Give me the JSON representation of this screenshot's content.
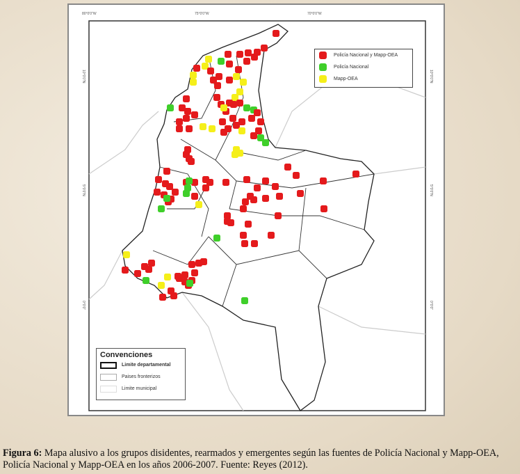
{
  "legend": {
    "items": [
      {
        "label": "Policía Nacional y Mapp-OEA",
        "color": "#e41a1c"
      },
      {
        "label": "Policía Nacional",
        "color": "#3fcf2a"
      },
      {
        "label": "Mapp-OEA",
        "color": "#f5ef1a"
      }
    ]
  },
  "conventions": {
    "title": "Convenciones",
    "items": [
      {
        "label": "Limite departamental"
      },
      {
        "label": "Paises fronterizos"
      },
      {
        "label": "Limite municipal"
      }
    ]
  },
  "ticks": {
    "top": [
      "80°0'0\"W",
      "75°0'0\"W",
      "70°0'0\"W"
    ],
    "left": [
      "10°0'0\"N",
      "5°0'0\"N",
      "0°0'0\""
    ]
  },
  "caption": {
    "label": "Figura 6:",
    "text": " Mapa alusivo a los grupos disidentes, rearmados y emergentes según las fuentes de Policía Nacional y Mapp-OEA, Policía Nacional y Mapp-OEA en los años 2006-2007. Fuente: Reyes (2012)."
  }
}
